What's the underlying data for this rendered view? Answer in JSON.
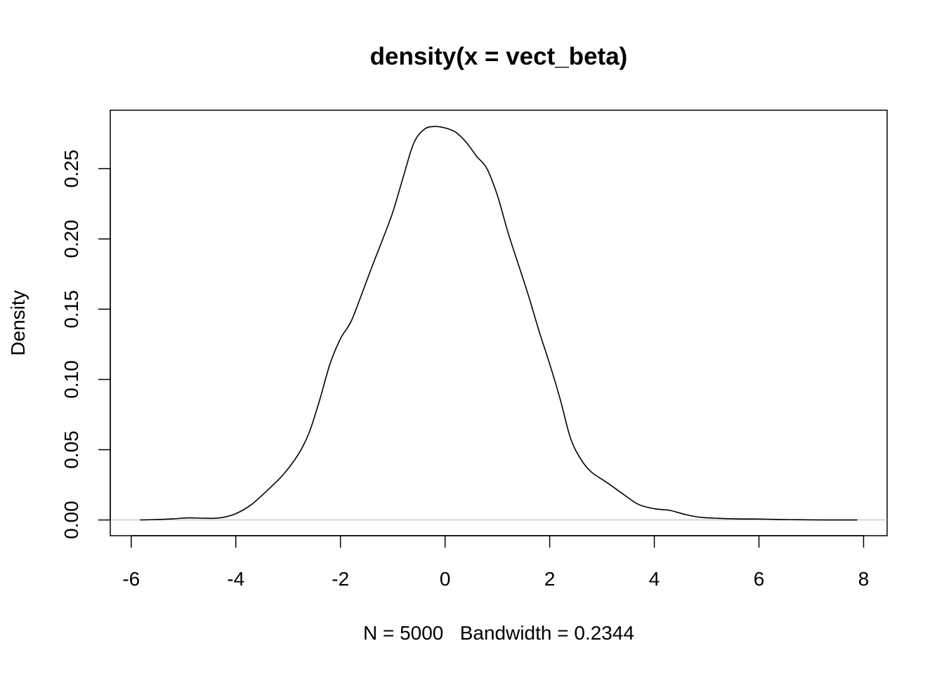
{
  "chart_data": {
    "type": "line",
    "title": "density(x = vect_beta)",
    "xlabel": "N = 5000   Bandwidth = 0.2344",
    "ylabel": "Density",
    "xlim": [
      -6.4,
      8.45
    ],
    "ylim": [
      -0.0112,
      0.2916
    ],
    "xticks": [
      -6,
      -4,
      -2,
      0,
      2,
      4,
      6,
      8
    ],
    "xtick_labels": [
      "-6",
      "-4",
      "-2",
      "0",
      "2",
      "4",
      "6",
      "8"
    ],
    "yticks": [
      0.0,
      0.05,
      0.1,
      0.15,
      0.2,
      0.25
    ],
    "ytick_labels": [
      "0.00",
      "0.05",
      "0.10",
      "0.15",
      "0.20",
      "0.25"
    ],
    "baseline": 0,
    "grid": false,
    "series": [
      {
        "color": "#000000",
        "x": [
          -5.83,
          -5.5,
          -5.2,
          -4.9,
          -4.6,
          -4.3,
          -4.0,
          -3.7,
          -3.4,
          -3.1,
          -2.8,
          -2.6,
          -2.4,
          -2.2,
          -2.0,
          -1.8,
          -1.6,
          -1.4,
          -1.2,
          -1.0,
          -0.8,
          -0.6,
          -0.4,
          -0.2,
          0.0,
          0.2,
          0.4,
          0.6,
          0.8,
          1.0,
          1.2,
          1.4,
          1.6,
          1.8,
          2.0,
          2.2,
          2.4,
          2.6,
          2.8,
          3.1,
          3.4,
          3.7,
          4.0,
          4.3,
          4.6,
          4.9,
          5.2,
          5.5,
          5.8,
          6.1,
          6.4,
          6.7,
          7.0,
          7.3,
          7.6,
          7.88
        ],
        "y": [
          0.0,
          0.0003,
          0.0008,
          0.0015,
          0.0012,
          0.0015,
          0.0045,
          0.011,
          0.021,
          0.032,
          0.047,
          0.062,
          0.085,
          0.111,
          0.129,
          0.141,
          0.16,
          0.18,
          0.199,
          0.219,
          0.244,
          0.268,
          0.278,
          0.28,
          0.279,
          0.276,
          0.269,
          0.259,
          0.25,
          0.231,
          0.205,
          0.182,
          0.159,
          0.134,
          0.111,
          0.086,
          0.058,
          0.043,
          0.034,
          0.0265,
          0.0185,
          0.011,
          0.008,
          0.0068,
          0.0038,
          0.0018,
          0.0012,
          0.0008,
          0.0007,
          0.0006,
          0.0003,
          0.0002,
          0.0001,
          0.0,
          0.0,
          0.0
        ]
      }
    ]
  }
}
